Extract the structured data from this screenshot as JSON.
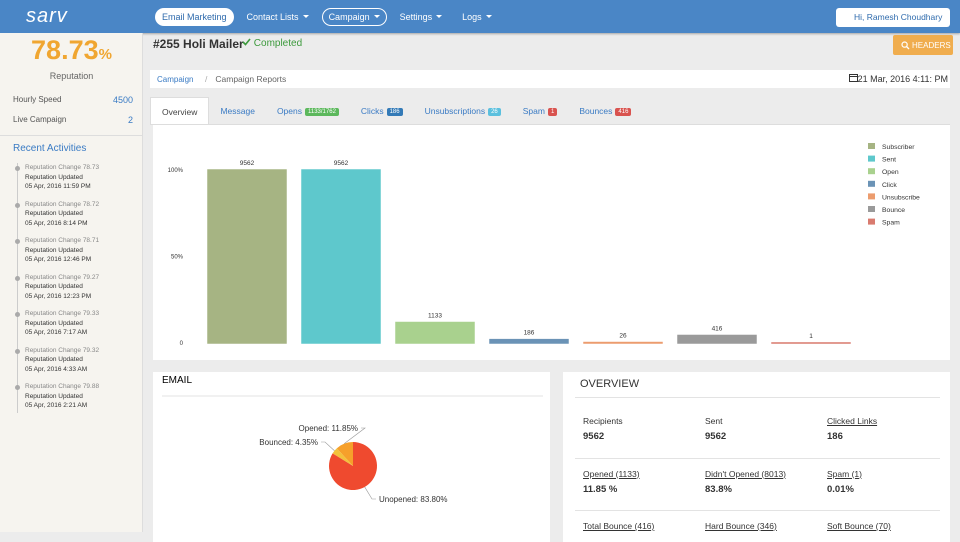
{
  "nav": {
    "brand": "sarv",
    "items": [
      "Email Marketing",
      "Contact Lists",
      "Campaign",
      "Settings",
      "Logs"
    ],
    "user": "Hi, Ramesh Choudhary"
  },
  "sidebar": {
    "reputation": {
      "value": "78.73",
      "unit": "%",
      "label": "Reputation"
    },
    "stats": [
      {
        "label": "Hourly Speed",
        "value": "4500"
      },
      {
        "label": "Live Campaign",
        "value": "2"
      }
    ],
    "recent_title": "Recent Activities",
    "activities": [
      {
        "change": "Reputation Change 78.73",
        "status": "Reputation Updated",
        "date": "05 Apr, 2016 11:59 PM"
      },
      {
        "change": "Reputation Change 78.72",
        "status": "Reputation Updated",
        "date": "05 Apr, 2016 8:14 PM"
      },
      {
        "change": "Reputation Change 78.71",
        "status": "Reputation Updated",
        "date": "05 Apr, 2016 12:46 PM"
      },
      {
        "change": "Reputation Change 79.27",
        "status": "Reputation Updated",
        "date": "05 Apr, 2016 12:23 PM"
      },
      {
        "change": "Reputation Change 79.33",
        "status": "Reputation Updated",
        "date": "05 Apr, 2016 7:17 AM"
      },
      {
        "change": "Reputation Change 79.32",
        "status": "Reputation Updated",
        "date": "05 Apr, 2016 4:33 AM"
      },
      {
        "change": "Reputation Change 79.88",
        "status": "Reputation Updated",
        "date": "05 Apr, 2016 2:21 AM"
      }
    ]
  },
  "header": {
    "title": "#255 Holi Mailer",
    "status": "Completed",
    "button": "HEADERS"
  },
  "breadcrumb": {
    "items": [
      "Campaign",
      "Campaign Reports"
    ],
    "date": "21 Mar, 2016 4:11: PM"
  },
  "tabs": [
    {
      "label": "Overview"
    },
    {
      "label": "Message"
    },
    {
      "label": "Opens",
      "badge": "1133/1762",
      "badge_color": "#5cb85c"
    },
    {
      "label": "Clicks",
      "badge": "186",
      "badge_color": "#337ab7"
    },
    {
      "label": "Unsubscriptions",
      "badge": "26",
      "badge_color": "#5bc0de"
    },
    {
      "label": "Spam",
      "badge": "1",
      "badge_color": "#d9534f"
    },
    {
      "label": "Bounces",
      "badge": "416",
      "badge_color": "#d9534f"
    }
  ],
  "chart_data": [
    {
      "type": "bar",
      "categories": [
        "Subscriber",
        "Sent",
        "Open",
        "Click",
        "Unsubscribe",
        "Bounce",
        "Spam"
      ],
      "values": [
        9562,
        9562,
        1133,
        186,
        26,
        416,
        1
      ],
      "colors": [
        "#a6b483",
        "#5ec8cc",
        "#a9d18e",
        "#6b93b6",
        "#ec9c6e",
        "#9a9a9a",
        "#d97b6f"
      ],
      "ylim": [
        0,
        12050
      ],
      "yticks": [
        0,
        {
          "value": 4781,
          "label": "50%"
        },
        {
          "value": 9562,
          "label": "100%"
        }
      ],
      "legend": "top-right",
      "grid": false
    },
    {
      "type": "pie",
      "title": "EMAIL",
      "values": [
        11.85,
        4.35,
        83.8
      ],
      "value_labels": [
        "Opened: 11.85%",
        "Bounced: 4.35%",
        "Unopened: 83.80%"
      ],
      "colors": [
        "#f6a02b",
        "#f3c13c",
        "#ef4a2f"
      ]
    }
  ],
  "overview": {
    "title": "OVERVIEW",
    "items": [
      {
        "label": "Recipients",
        "value": "9562"
      },
      {
        "label": "Sent",
        "value": "9562"
      },
      {
        "label": "Clicked Links",
        "value": "186"
      },
      {
        "label": "Opened (1133)",
        "value": "11.85 %"
      },
      {
        "label": "Didn't Opened (8013)",
        "value": "83.8%"
      },
      {
        "label": "Spam (1)",
        "value": "0.01%"
      },
      {
        "label": "Total Bounce (416)"
      },
      {
        "label": "Hard Bounce (346)"
      },
      {
        "label": "Soft Bounce (70)"
      }
    ]
  }
}
